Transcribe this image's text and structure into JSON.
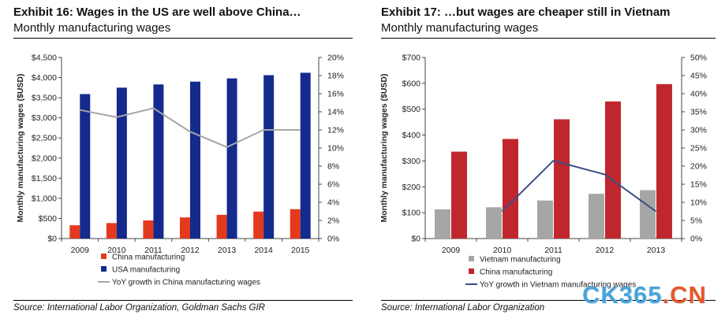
{
  "exhibit16": {
    "title": "Exhibit 16: Wages in the US are well above China…",
    "subtitle": "Monthly manufacturing wages",
    "source": "Source: International Labor Organization, Goldman Sachs GIR"
  },
  "exhibit17": {
    "title": "Exhibit 17: …but wages are cheaper still in Vietnam",
    "subtitle": "Monthly manufacturing wages",
    "source": "Source: International Labor Organization"
  },
  "watermark": {
    "main": "CK365",
    "tld": ".CN"
  },
  "chart_data": [
    {
      "id": "exhibit16",
      "type": "bar",
      "categories": [
        "2009",
        "2010",
        "2011",
        "2012",
        "2013",
        "2014",
        "2015"
      ],
      "series": [
        {
          "name": "China manufacturing",
          "kind": "bar",
          "axis": "left",
          "color": "#e5391d",
          "values": [
            330,
            385,
            450,
            525,
            590,
            670,
            730
          ]
        },
        {
          "name": "USA manufacturing",
          "kind": "bar",
          "axis": "left",
          "color": "#142a8c",
          "values": [
            3590,
            3750,
            3830,
            3900,
            3980,
            4060,
            4120
          ]
        },
        {
          "name": "YoY growth in China manufacturing wages",
          "kind": "line",
          "axis": "right",
          "color": "#a6a6a6",
          "values": [
            14.2,
            13.4,
            14.4,
            11.8,
            10.1,
            12.0,
            12.0
          ]
        }
      ],
      "ylabel": "Monthly manufacturing wages ($USD)",
      "ylim": [
        0,
        4500
      ],
      "yticks": [
        "$0",
        "$500",
        "$1,000",
        "$1,500",
        "$2,000",
        "$2,500",
        "$3,000",
        "$3,500",
        "$4,000",
        "$4,500"
      ],
      "y2lim": [
        0,
        20
      ],
      "y2ticks": [
        "0%",
        "2%",
        "4%",
        "6%",
        "8%",
        "10%",
        "12%",
        "14%",
        "16%",
        "18%",
        "20%"
      ],
      "grid": false,
      "legend": "bottom"
    },
    {
      "id": "exhibit17",
      "type": "bar",
      "categories": [
        "2009",
        "2010",
        "2011",
        "2012",
        "2013"
      ],
      "series": [
        {
          "name": "Vietnam manufacturing",
          "kind": "bar",
          "axis": "left",
          "color": "#a6a6a6",
          "values": [
            113,
            121,
            147,
            173,
            187
          ]
        },
        {
          "name": "China manufacturing",
          "kind": "bar",
          "axis": "left",
          "color": "#c0272d",
          "values": [
            336,
            385,
            461,
            530,
            597
          ]
        },
        {
          "name": "YoY growth in Vietnam manufacturing wages",
          "kind": "line",
          "axis": "right",
          "color": "#3b4d86",
          "values": [
            null,
            7.5,
            21.5,
            17.7,
            7.5
          ]
        }
      ],
      "ylabel": "Monthly manufacturing wages ($USD)",
      "ylim": [
        0,
        700
      ],
      "yticks": [
        "$0",
        "$100",
        "$200",
        "$300",
        "$400",
        "$500",
        "$600",
        "$700"
      ],
      "y2lim": [
        0,
        50
      ],
      "y2ticks": [
        "0%",
        "5%",
        "10%",
        "15%",
        "20%",
        "25%",
        "30%",
        "35%",
        "40%",
        "45%",
        "50%"
      ],
      "grid": false,
      "legend": "bottom"
    }
  ]
}
